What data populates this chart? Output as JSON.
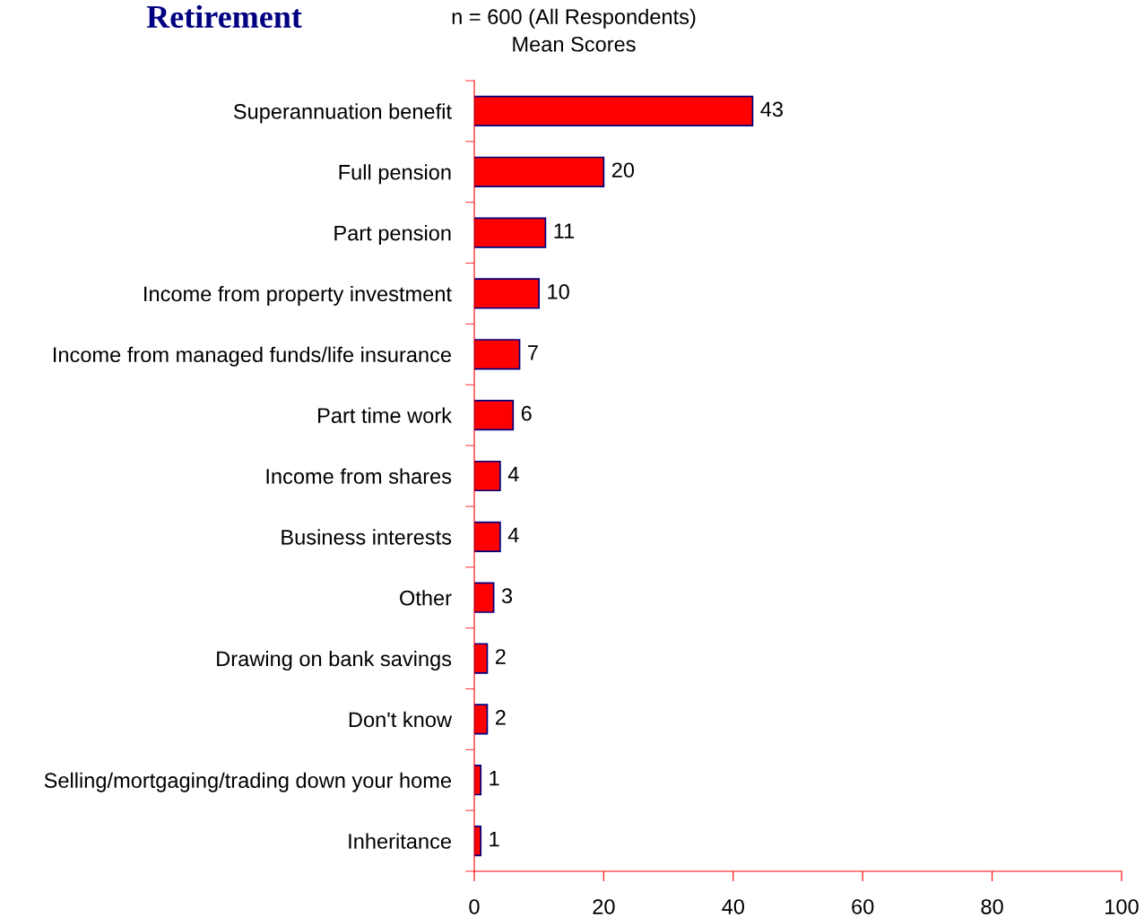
{
  "chart_data": {
    "type": "bar",
    "orientation": "horizontal",
    "title": "Retirement",
    "subtitle": "n = 600 (All Respondents)\nMean Scores",
    "categories": [
      "Superannuation benefit",
      "Full pension",
      "Part pension",
      "Income from property investment",
      "Income from managed funds/life insurance",
      "Part time work",
      "Income from shares",
      "Business interests",
      "Other",
      "Drawing on bank savings",
      "Don't know",
      "Selling/mortgaging/trading down your home",
      "Inheritance"
    ],
    "values": [
      43,
      20,
      11,
      10,
      7,
      6,
      4,
      4,
      3,
      2,
      2,
      1,
      1
    ],
    "color": "#ff0000",
    "xlim": [
      0,
      100
    ],
    "xticks": [
      0,
      20,
      40,
      60,
      80,
      100
    ],
    "data_labels": true,
    "grid": false,
    "legend": false
  }
}
